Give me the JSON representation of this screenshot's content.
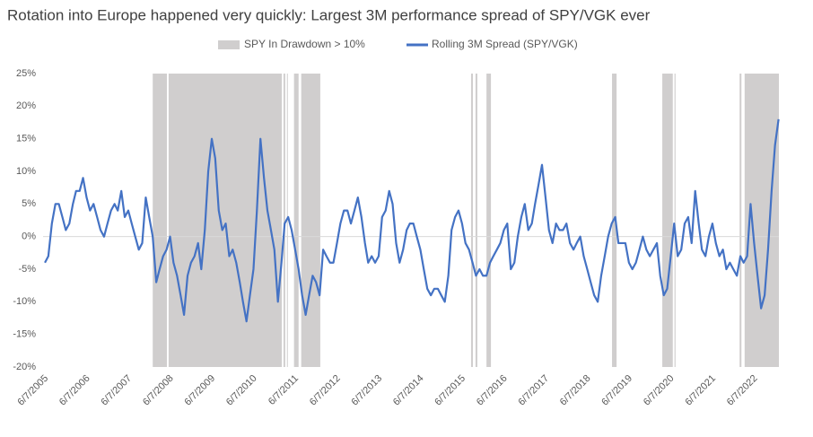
{
  "chart_data": {
    "type": "line",
    "title": "Rotation into Europe happened very quickly: Largest 3M performance spread of SPY/VGK ever",
    "xlim": [
      "2005-05-22",
      "2023-01-10"
    ],
    "xticks": [
      {
        "value": "2005-06-07",
        "label": "6/7/2005"
      },
      {
        "value": "2006-06-07",
        "label": "6/7/2006"
      },
      {
        "value": "2007-06-07",
        "label": "6/7/2007"
      },
      {
        "value": "2008-06-07",
        "label": "6/7/2008"
      },
      {
        "value": "2009-06-07",
        "label": "6/7/2009"
      },
      {
        "value": "2010-06-07",
        "label": "6/7/2010"
      },
      {
        "value": "2011-06-07",
        "label": "6/7/2011"
      },
      {
        "value": "2012-06-07",
        "label": "6/7/2012"
      },
      {
        "value": "2013-06-07",
        "label": "6/7/2013"
      },
      {
        "value": "2014-06-07",
        "label": "6/7/2014"
      },
      {
        "value": "2015-06-07",
        "label": "6/7/2015"
      },
      {
        "value": "2016-06-07",
        "label": "6/7/2016"
      },
      {
        "value": "2017-06-07",
        "label": "6/7/2017"
      },
      {
        "value": "2018-06-07",
        "label": "6/7/2018"
      },
      {
        "value": "2019-06-07",
        "label": "6/7/2019"
      },
      {
        "value": "2020-06-07",
        "label": "6/7/2020"
      },
      {
        "value": "2021-06-07",
        "label": "6/7/2021"
      },
      {
        "value": "2022-06-07",
        "label": "6/7/2022"
      }
    ],
    "ylim": [
      -20,
      25
    ],
    "yticks": [
      {
        "value": 25,
        "label": "25%"
      },
      {
        "value": 20,
        "label": "20%"
      },
      {
        "value": 15,
        "label": "15%"
      },
      {
        "value": 10,
        "label": "10%"
      },
      {
        "value": 5,
        "label": "5%"
      },
      {
        "value": 0,
        "label": "0%"
      },
      {
        "value": -5,
        "label": "-5%"
      },
      {
        "value": -10,
        "label": "-10%"
      },
      {
        "value": -15,
        "label": "-15%"
      },
      {
        "value": -20,
        "label": "-20%"
      }
    ],
    "shaded_regions": {
      "name": "SPY In Drawdown > 10%",
      "color": "#d0cece",
      "ranges": [
        [
          "2008-01-07",
          "2008-05-10"
        ],
        [
          "2008-05-25",
          "2011-02-10"
        ],
        [
          "2011-02-25",
          "2011-03-12"
        ],
        [
          "2011-03-27",
          "2011-04-03"
        ],
        [
          "2011-05-28",
          "2011-07-07"
        ],
        [
          "2011-07-30",
          "2012-01-13"
        ],
        [
          "2015-08-25",
          "2015-09-10"
        ],
        [
          "2015-10-03",
          "2015-10-19"
        ],
        [
          "2016-01-07",
          "2016-02-15"
        ],
        [
          "2019-01-10",
          "2019-02-19"
        ],
        [
          "2020-03-25",
          "2020-06-25"
        ],
        [
          "2020-07-10",
          "2020-07-19"
        ],
        [
          "2022-01-31",
          "2022-02-16"
        ],
        [
          "2022-03-16",
          "2023-01-10"
        ]
      ]
    },
    "x": [
      "2005-06-07",
      "2005-07-07",
      "2005-08-07",
      "2005-09-07",
      "2005-10-07",
      "2005-11-07",
      "2005-12-07",
      "2006-01-07",
      "2006-02-07",
      "2006-03-07",
      "2006-04-07",
      "2006-05-07",
      "2006-06-07",
      "2006-07-07",
      "2006-08-07",
      "2006-09-07",
      "2006-10-07",
      "2006-11-07",
      "2006-12-07",
      "2007-01-07",
      "2007-02-07",
      "2007-03-07",
      "2007-04-07",
      "2007-05-07",
      "2007-06-07",
      "2007-07-07",
      "2007-08-07",
      "2007-09-07",
      "2007-10-07",
      "2007-11-07",
      "2007-12-07",
      "2008-01-07",
      "2008-02-07",
      "2008-03-07",
      "2008-04-07",
      "2008-05-07",
      "2008-06-07",
      "2008-07-07",
      "2008-08-07",
      "2008-09-07",
      "2008-10-07",
      "2008-11-07",
      "2008-12-07",
      "2009-01-07",
      "2009-02-07",
      "2009-03-07",
      "2009-04-07",
      "2009-05-07",
      "2009-06-07",
      "2009-07-07",
      "2009-08-07",
      "2009-09-07",
      "2009-10-07",
      "2009-11-07",
      "2009-12-07",
      "2010-01-07",
      "2010-02-07",
      "2010-03-07",
      "2010-04-07",
      "2010-05-07",
      "2010-06-07",
      "2010-07-07",
      "2010-08-07",
      "2010-09-07",
      "2010-10-07",
      "2010-11-07",
      "2010-12-07",
      "2011-01-07",
      "2011-02-07",
      "2011-03-07",
      "2011-04-07",
      "2011-05-07",
      "2011-06-07",
      "2011-07-07",
      "2011-08-07",
      "2011-09-07",
      "2011-10-07",
      "2011-11-07",
      "2011-12-07",
      "2012-01-07",
      "2012-02-07",
      "2012-03-07",
      "2012-04-07",
      "2012-05-07",
      "2012-06-07",
      "2012-07-07",
      "2012-08-07",
      "2012-09-07",
      "2012-10-07",
      "2012-11-07",
      "2012-12-07",
      "2013-01-07",
      "2013-02-07",
      "2013-03-07",
      "2013-04-07",
      "2013-05-07",
      "2013-06-07",
      "2013-07-07",
      "2013-08-07",
      "2013-09-07",
      "2013-10-07",
      "2013-11-07",
      "2013-12-07",
      "2014-01-07",
      "2014-02-07",
      "2014-03-07",
      "2014-04-07",
      "2014-05-07",
      "2014-06-07",
      "2014-07-07",
      "2014-08-07",
      "2014-09-07",
      "2014-10-07",
      "2014-11-07",
      "2014-12-07",
      "2015-01-07",
      "2015-02-07",
      "2015-03-07",
      "2015-04-07",
      "2015-05-07",
      "2015-06-07",
      "2015-07-07",
      "2015-08-07",
      "2015-09-07",
      "2015-10-07",
      "2015-11-07",
      "2015-12-07",
      "2016-01-07",
      "2016-02-07",
      "2016-03-07",
      "2016-04-07",
      "2016-05-07",
      "2016-06-07",
      "2016-07-07",
      "2016-08-07",
      "2016-09-07",
      "2016-10-07",
      "2016-11-07",
      "2016-12-07",
      "2017-01-07",
      "2017-02-07",
      "2017-03-07",
      "2017-04-07",
      "2017-05-07",
      "2017-06-07",
      "2017-07-07",
      "2017-08-07",
      "2017-09-07",
      "2017-10-07",
      "2017-11-07",
      "2017-12-07",
      "2018-01-07",
      "2018-02-07",
      "2018-03-07",
      "2018-04-07",
      "2018-05-07",
      "2018-06-07",
      "2018-07-07",
      "2018-08-07",
      "2018-09-07",
      "2018-10-07",
      "2018-11-07",
      "2018-12-07",
      "2019-01-07",
      "2019-02-07",
      "2019-03-07",
      "2019-04-07",
      "2019-05-07",
      "2019-06-07",
      "2019-07-07",
      "2019-08-07",
      "2019-09-07",
      "2019-10-07",
      "2019-11-07",
      "2019-12-07",
      "2020-01-07",
      "2020-02-07",
      "2020-03-07",
      "2020-04-07",
      "2020-05-07",
      "2020-06-07",
      "2020-07-07",
      "2020-08-07",
      "2020-09-07",
      "2020-10-07",
      "2020-11-07",
      "2020-12-07",
      "2021-01-07",
      "2021-02-07",
      "2021-03-07",
      "2021-04-07",
      "2021-05-07",
      "2021-06-07",
      "2021-07-07",
      "2021-08-07",
      "2021-09-07",
      "2021-10-07",
      "2021-11-07",
      "2021-12-07",
      "2022-01-07",
      "2022-02-07",
      "2022-03-07",
      "2022-04-07",
      "2022-05-07",
      "2022-06-07",
      "2022-07-07",
      "2022-08-07",
      "2022-09-07",
      "2022-10-07",
      "2022-11-07",
      "2022-12-07",
      "2023-01-07"
    ],
    "series": [
      {
        "name": "Rolling 3M Spread (SPY/VGK)",
        "color": "#4472c4",
        "values": [
          -4,
          -3,
          2,
          5,
          5,
          3,
          1,
          2,
          5,
          7,
          7,
          9,
          6,
          4,
          5,
          3,
          1,
          0,
          2,
          4,
          5,
          4,
          7,
          3,
          4,
          2,
          0,
          -2,
          -1,
          6,
          3,
          0,
          -7,
          -5,
          -3,
          -2,
          0,
          -4,
          -6,
          -9,
          -12,
          -6,
          -4,
          -3,
          -1,
          -5,
          1,
          10,
          15,
          12,
          4,
          1,
          2,
          -3,
          -2,
          -4,
          -7,
          -10,
          -13,
          -9,
          -5,
          4,
          15,
          9,
          4,
          1,
          -2,
          -10,
          -4,
          2,
          3,
          1,
          -2,
          -5,
          -9,
          -12,
          -9,
          -6,
          -7,
          -9,
          -2,
          -3,
          -4,
          -4,
          -1,
          2,
          4,
          4,
          2,
          4,
          6,
          3,
          -1,
          -4,
          -3,
          -4,
          -3,
          3,
          4,
          7,
          5,
          -1,
          -4,
          -2,
          1,
          2,
          2,
          0,
          -2,
          -5,
          -8,
          -9,
          -8,
          -8,
          -9,
          -10,
          -6,
          1,
          3,
          4,
          2,
          -1,
          -2,
          -4,
          -6,
          -5,
          -6,
          -6,
          -4,
          -3,
          -2,
          -1,
          1,
          2,
          -5,
          -4,
          0,
          3,
          5,
          1,
          2,
          5,
          8,
          11,
          6,
          1,
          -1,
          2,
          1,
          1,
          2,
          -1,
          -2,
          -1,
          0,
          -3,
          -5,
          -7,
          -9,
          -10,
          -6,
          -3,
          0,
          2,
          3,
          -1,
          -1,
          -1,
          -4,
          -5,
          -4,
          -2,
          0,
          -2,
          -3,
          -2,
          -1,
          -6,
          -9,
          -8,
          -3,
          2,
          -3,
          -2,
          2,
          3,
          -1,
          7,
          2,
          -2,
          -3,
          0,
          2,
          -1,
          -3,
          -2,
          -5,
          -4,
          -5,
          -6,
          -3,
          -4,
          -3,
          5,
          -1,
          -6,
          -11,
          -9,
          -2,
          7,
          14,
          18
        ]
      }
    ]
  }
}
